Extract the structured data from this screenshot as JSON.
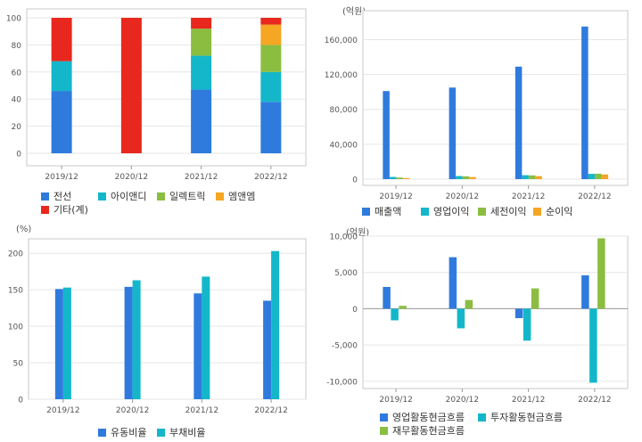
{
  "chart_data": [
    {
      "type": "bar",
      "stacked": true,
      "title": "",
      "unit_label": "",
      "categories": [
        "2019/12",
        "2020/12",
        "2021/12",
        "2022/12"
      ],
      "ylim": [
        0,
        100
      ],
      "yticks": [
        "0",
        "20",
        "40",
        "60",
        "80",
        "100"
      ],
      "series": [
        {
          "name": "전선",
          "color": "#2f7bdd",
          "values": [
            46,
            0,
            47,
            38
          ]
        },
        {
          "name": "아이앤디",
          "color": "#13b7c9",
          "values": [
            22,
            0,
            25,
            22
          ]
        },
        {
          "name": "일렉트릭",
          "color": "#8bbd41",
          "values": [
            0,
            0,
            20,
            20
          ]
        },
        {
          "name": "엠앤엠",
          "color": "#f5a623",
          "values": [
            0,
            0,
            0,
            15
          ]
        },
        {
          "name": "기타(계)",
          "color": "#e8281e",
          "values": [
            32,
            100,
            8,
            5
          ]
        }
      ],
      "legend_position": "bottom"
    },
    {
      "type": "bar",
      "title": "",
      "unit_label": "(억원)",
      "categories": [
        "2019/12",
        "2020/12",
        "2021/12",
        "2022/12"
      ],
      "ylim": [
        0,
        185000
      ],
      "yticks": [
        "0",
        "40,000",
        "80,000",
        "120,000",
        "160,000"
      ],
      "series": [
        {
          "name": "매출액",
          "color": "#2f7bdd",
          "values": [
            101000,
            105000,
            129000,
            175000
          ]
        },
        {
          "name": "영업이익",
          "color": "#13b7c9",
          "values": [
            2500,
            3500,
            4500,
            6000
          ]
        },
        {
          "name": "세전이익",
          "color": "#8bbd41",
          "values": [
            1800,
            3200,
            4300,
            6200
          ]
        },
        {
          "name": "순이익",
          "color": "#f5a623",
          "values": [
            1200,
            2400,
            3400,
            5300
          ]
        }
      ],
      "legend_position": "bottom"
    },
    {
      "type": "bar",
      "title": "",
      "unit_label": "(%)",
      "categories": [
        "2019/12",
        "2020/12",
        "2021/12",
        "2022/12"
      ],
      "ylim": [
        0,
        210
      ],
      "yticks": [
        "0",
        "50",
        "100",
        "150",
        "200"
      ],
      "series": [
        {
          "name": "유동비율",
          "color": "#2f7bdd",
          "values": [
            151,
            154,
            145,
            135
          ]
        },
        {
          "name": "부채비율",
          "color": "#13b7c9",
          "values": [
            153,
            163,
            168,
            203
          ]
        }
      ],
      "legend_position": "bottom"
    },
    {
      "type": "bar",
      "title": "",
      "unit_label": "(억원)",
      "categories": [
        "2019/12",
        "2020/12",
        "2021/12",
        "2022/12"
      ],
      "ylim": [
        -11000,
        10000
      ],
      "yticks": [
        "-10,000",
        "-5,000",
        "0",
        "5,000",
        "10,000"
      ],
      "series": [
        {
          "name": "영업활동현금흐름",
          "color": "#2f7bdd",
          "values": [
            3000,
            7100,
            -1300,
            4600
          ]
        },
        {
          "name": "투자활동현금흐름",
          "color": "#13b7c9",
          "values": [
            -1600,
            -2700,
            -4400,
            -10200
          ]
        },
        {
          "name": "재무활동현금흐름",
          "color": "#8bbd41",
          "values": [
            400,
            1200,
            2800,
            9700
          ]
        }
      ],
      "legend_position": "bottom"
    }
  ]
}
